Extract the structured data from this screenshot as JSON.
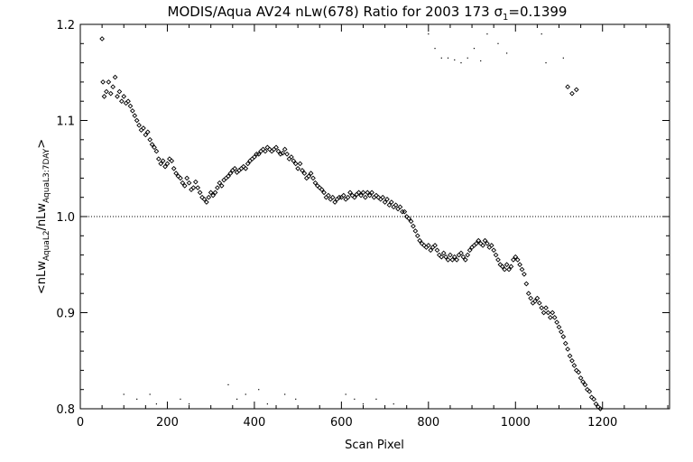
{
  "chart_data": {
    "type": "scatter",
    "title": "MODIS/Aqua AV24 nLw(678) Ratio for 2003 173 σ₁=0.1399",
    "title_parts": {
      "main": "MODIS/Aqua AV24 nLw(678) Ratio for 2003 173 σ",
      "sub": "1",
      "tail": "=0.1399"
    },
    "xlabel": "Scan Pixel",
    "ylabel": "<nLw AquaL2/nLw AquaL3:7DAY>",
    "ylabel_parts": {
      "a": "<nLw",
      "a_sub": "AquaL2",
      "b": "/nLw",
      "b_sub": "AquaL3:7DAY",
      "c": ">"
    },
    "xlim": [
      0,
      1354
    ],
    "ylim": [
      0.8,
      1.2
    ],
    "xticks": [
      0,
      200,
      400,
      600,
      800,
      1000,
      1200
    ],
    "yticks": [
      0.8,
      0.9,
      1.0,
      1.1,
      1.2
    ],
    "xtick_labels": [
      "0",
      "200",
      "400",
      "600",
      "800",
      "1000",
      "1200"
    ],
    "ytick_labels": [
      "0.8",
      "0.9",
      "1.0",
      "1.1",
      "1.2"
    ],
    "reference_line": 1.0,
    "grid": false,
    "legend": "none",
    "series": [
      {
        "marker": "diamond",
        "points": [
          [
            50,
            1.185
          ],
          [
            52,
            1.14
          ],
          [
            55,
            1.125
          ],
          [
            60,
            1.13
          ],
          [
            65,
            1.14
          ],
          [
            70,
            1.128
          ],
          [
            75,
            1.135
          ],
          [
            80,
            1.145
          ],
          [
            85,
            1.125
          ],
          [
            90,
            1.13
          ],
          [
            95,
            1.12
          ],
          [
            100,
            1.125
          ],
          [
            105,
            1.118
          ],
          [
            110,
            1.12
          ],
          [
            115,
            1.115
          ],
          [
            120,
            1.11
          ],
          [
            125,
            1.105
          ],
          [
            130,
            1.1
          ],
          [
            135,
            1.095
          ],
          [
            140,
            1.09
          ],
          [
            145,
            1.092
          ],
          [
            150,
            1.085
          ],
          [
            155,
            1.088
          ],
          [
            160,
            1.08
          ],
          [
            165,
            1.075
          ],
          [
            170,
            1.072
          ],
          [
            175,
            1.068
          ],
          [
            180,
            1.06
          ],
          [
            185,
            1.055
          ],
          [
            190,
            1.058
          ],
          [
            195,
            1.052
          ],
          [
            200,
            1.055
          ],
          [
            205,
            1.06
          ],
          [
            210,
            1.058
          ],
          [
            215,
            1.05
          ],
          [
            220,
            1.045
          ],
          [
            225,
            1.042
          ],
          [
            230,
            1.04
          ],
          [
            235,
            1.035
          ],
          [
            240,
            1.032
          ],
          [
            245,
            1.04
          ],
          [
            250,
            1.035
          ],
          [
            255,
            1.028
          ],
          [
            260,
            1.03
          ],
          [
            265,
            1.036
          ],
          [
            270,
            1.03
          ],
          [
            275,
            1.025
          ],
          [
            280,
            1.02
          ],
          [
            285,
            1.018
          ],
          [
            290,
            1.015
          ],
          [
            295,
            1.02
          ],
          [
            300,
            1.025
          ],
          [
            305,
            1.022
          ],
          [
            310,
            1.025
          ],
          [
            315,
            1.03
          ],
          [
            320,
            1.035
          ],
          [
            325,
            1.032
          ],
          [
            330,
            1.038
          ],
          [
            335,
            1.04
          ],
          [
            340,
            1.042
          ],
          [
            345,
            1.045
          ],
          [
            350,
            1.048
          ],
          [
            355,
            1.05
          ],
          [
            360,
            1.046
          ],
          [
            365,
            1.048
          ],
          [
            370,
            1.05
          ],
          [
            375,
            1.052
          ],
          [
            380,
            1.05
          ],
          [
            385,
            1.055
          ],
          [
            390,
            1.058
          ],
          [
            395,
            1.06
          ],
          [
            400,
            1.062
          ],
          [
            405,
            1.065
          ],
          [
            410,
            1.065
          ],
          [
            415,
            1.068
          ],
          [
            420,
            1.07
          ],
          [
            425,
            1.068
          ],
          [
            430,
            1.072
          ],
          [
            435,
            1.07
          ],
          [
            440,
            1.068
          ],
          [
            445,
            1.07
          ],
          [
            450,
            1.072
          ],
          [
            455,
            1.068
          ],
          [
            460,
            1.065
          ],
          [
            465,
            1.066
          ],
          [
            470,
            1.07
          ],
          [
            475,
            1.065
          ],
          [
            480,
            1.06
          ],
          [
            485,
            1.062
          ],
          [
            490,
            1.058
          ],
          [
            495,
            1.055
          ],
          [
            500,
            1.05
          ],
          [
            505,
            1.055
          ],
          [
            510,
            1.048
          ],
          [
            515,
            1.045
          ],
          [
            520,
            1.04
          ],
          [
            525,
            1.042
          ],
          [
            530,
            1.045
          ],
          [
            535,
            1.04
          ],
          [
            540,
            1.035
          ],
          [
            545,
            1.032
          ],
          [
            550,
            1.03
          ],
          [
            555,
            1.028
          ],
          [
            560,
            1.025
          ],
          [
            565,
            1.02
          ],
          [
            570,
            1.022
          ],
          [
            575,
            1.018
          ],
          [
            580,
            1.02
          ],
          [
            585,
            1.015
          ],
          [
            590,
            1.018
          ],
          [
            595,
            1.02
          ],
          [
            600,
            1.02
          ],
          [
            605,
            1.022
          ],
          [
            610,
            1.018
          ],
          [
            615,
            1.02
          ],
          [
            620,
            1.025
          ],
          [
            625,
            1.022
          ],
          [
            630,
            1.02
          ],
          [
            635,
            1.023
          ],
          [
            640,
            1.025
          ],
          [
            645,
            1.022
          ],
          [
            650,
            1.025
          ],
          [
            655,
            1.02
          ],
          [
            660,
            1.025
          ],
          [
            665,
            1.022
          ],
          [
            670,
            1.025
          ],
          [
            675,
            1.02
          ],
          [
            680,
            1.022
          ],
          [
            685,
            1.02
          ],
          [
            690,
            1.018
          ],
          [
            695,
            1.02
          ],
          [
            700,
            1.015
          ],
          [
            705,
            1.018
          ],
          [
            710,
            1.012
          ],
          [
            715,
            1.015
          ],
          [
            720,
            1.01
          ],
          [
            725,
            1.012
          ],
          [
            730,
            1.008
          ],
          [
            735,
            1.01
          ],
          [
            740,
            1.005
          ],
          [
            745,
            1.005
          ],
          [
            750,
            1.0
          ],
          [
            755,
            0.998
          ],
          [
            760,
            0.995
          ],
          [
            765,
            0.99
          ],
          [
            770,
            0.985
          ],
          [
            775,
            0.98
          ],
          [
            780,
            0.975
          ],
          [
            785,
            0.972
          ],
          [
            790,
            0.97
          ],
          [
            795,
            0.968
          ],
          [
            800,
            0.97
          ],
          [
            805,
            0.965
          ],
          [
            810,
            0.968
          ],
          [
            815,
            0.97
          ],
          [
            820,
            0.965
          ],
          [
            825,
            0.96
          ],
          [
            830,
            0.958
          ],
          [
            835,
            0.962
          ],
          [
            840,
            0.958
          ],
          [
            845,
            0.955
          ],
          [
            850,
            0.96
          ],
          [
            855,
            0.955
          ],
          [
            860,
            0.958
          ],
          [
            865,
            0.955
          ],
          [
            870,
            0.96
          ],
          [
            875,
            0.962
          ],
          [
            880,
            0.958
          ],
          [
            885,
            0.955
          ],
          [
            890,
            0.96
          ],
          [
            895,
            0.965
          ],
          [
            900,
            0.968
          ],
          [
            905,
            0.97
          ],
          [
            910,
            0.972
          ],
          [
            915,
            0.975
          ],
          [
            920,
            0.972
          ],
          [
            925,
            0.97
          ],
          [
            930,
            0.975
          ],
          [
            935,
            0.972
          ],
          [
            940,
            0.968
          ],
          [
            945,
            0.97
          ],
          [
            950,
            0.965
          ],
          [
            955,
            0.96
          ],
          [
            960,
            0.955
          ],
          [
            965,
            0.95
          ],
          [
            970,
            0.948
          ],
          [
            975,
            0.945
          ],
          [
            980,
            0.95
          ],
          [
            985,
            0.945
          ],
          [
            990,
            0.948
          ],
          [
            995,
            0.955
          ],
          [
            1000,
            0.958
          ],
          [
            1005,
            0.955
          ],
          [
            1010,
            0.95
          ],
          [
            1015,
            0.945
          ],
          [
            1020,
            0.94
          ],
          [
            1025,
            0.93
          ],
          [
            1030,
            0.92
          ],
          [
            1035,
            0.915
          ],
          [
            1040,
            0.91
          ],
          [
            1045,
            0.912
          ],
          [
            1050,
            0.915
          ],
          [
            1055,
            0.91
          ],
          [
            1060,
            0.905
          ],
          [
            1065,
            0.9
          ],
          [
            1070,
            0.905
          ],
          [
            1075,
            0.9
          ],
          [
            1080,
            0.895
          ],
          [
            1085,
            0.9
          ],
          [
            1090,
            0.895
          ],
          [
            1095,
            0.89
          ],
          [
            1100,
            0.885
          ],
          [
            1105,
            0.88
          ],
          [
            1110,
            0.875
          ],
          [
            1115,
            0.868
          ],
          [
            1120,
            0.862
          ],
          [
            1125,
            0.855
          ],
          [
            1130,
            0.85
          ],
          [
            1135,
            0.845
          ],
          [
            1140,
            0.84
          ],
          [
            1145,
            0.838
          ],
          [
            1150,
            0.832
          ],
          [
            1155,
            0.828
          ],
          [
            1160,
            0.825
          ],
          [
            1165,
            0.82
          ],
          [
            1170,
            0.818
          ],
          [
            1175,
            0.812
          ],
          [
            1180,
            0.81
          ],
          [
            1185,
            0.805
          ],
          [
            1190,
            0.802
          ],
          [
            1195,
            0.8
          ],
          [
            1120,
            1.135
          ],
          [
            1130,
            1.128
          ],
          [
            1140,
            1.132
          ]
        ]
      },
      {
        "marker": "dot",
        "points": [
          [
            800,
            1.19
          ],
          [
            815,
            1.175
          ],
          [
            830,
            1.165
          ],
          [
            845,
            1.165
          ],
          [
            860,
            1.163
          ],
          [
            875,
            1.16
          ],
          [
            890,
            1.165
          ],
          [
            905,
            1.175
          ],
          [
            935,
            1.19
          ],
          [
            960,
            1.18
          ],
          [
            980,
            1.17
          ],
          [
            1060,
            1.19
          ],
          [
            1070,
            1.16
          ],
          [
            1110,
            1.165
          ],
          [
            920,
            1.162
          ],
          [
            100,
            0.815
          ],
          [
            130,
            0.81
          ],
          [
            160,
            0.815
          ],
          [
            175,
            0.805
          ],
          [
            230,
            0.81
          ],
          [
            250,
            0.805
          ],
          [
            340,
            0.825
          ],
          [
            360,
            0.81
          ],
          [
            380,
            0.815
          ],
          [
            410,
            0.82
          ],
          [
            430,
            0.805
          ],
          [
            470,
            0.815
          ],
          [
            495,
            0.81
          ],
          [
            610,
            0.815
          ],
          [
            630,
            0.81
          ],
          [
            650,
            0.805
          ],
          [
            680,
            0.81
          ],
          [
            720,
            0.805
          ]
        ]
      }
    ]
  }
}
